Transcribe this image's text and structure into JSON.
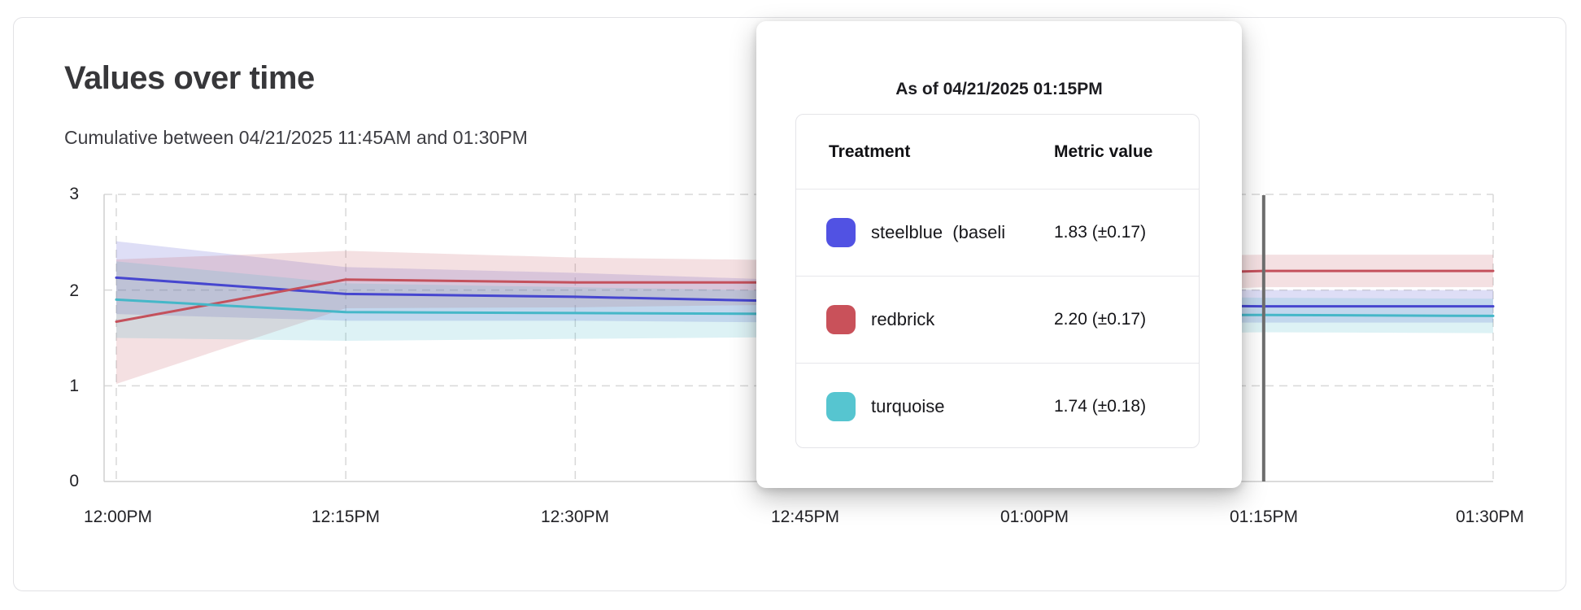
{
  "card": {
    "title": "Values over time",
    "subtitle": "Cumulative between 04/21/2025 11:45AM and 01:30PM"
  },
  "tooltip": {
    "title": "As of 04/21/2025 01:15PM",
    "columns": [
      "Treatment",
      "Metric value"
    ],
    "rows": [
      {
        "swatch_color": "#5152e3",
        "label": "steelblue  (baseli",
        "value": "1.83 (±0.17)"
      },
      {
        "swatch_color": "#c9515a",
        "label": "redbrick",
        "value": "2.20 (±0.17)"
      },
      {
        "swatch_color": "#56c5d0",
        "label": "turquoise",
        "value": "1.74 (±0.18)"
      }
    ]
  },
  "chart_data": {
    "type": "line",
    "title": "Values over time",
    "x_labels": [
      "12:00PM",
      "12:15PM",
      "12:30PM",
      "12:45PM",
      "01:00PM",
      "01:15PM",
      "01:30PM"
    ],
    "y_ticks": [
      "3",
      "2",
      "1",
      "0"
    ],
    "ylim": [
      0,
      3
    ],
    "grid": true,
    "legend_position": "tooltip",
    "cursor_index": 5,
    "cursor_time": "01:15PM",
    "cursor_color": "#6e6e6e",
    "grid_color": "#d8d8d8",
    "axis_color": "#cfcfcf",
    "band_opacity": 0.18,
    "series": [
      {
        "name": "steelblue",
        "color": "#4646cf",
        "values": [
          2.13,
          1.96,
          1.93,
          1.88,
          1.85,
          1.83,
          1.83
        ],
        "err": [
          0.38,
          0.28,
          0.25,
          0.22,
          0.19,
          0.17,
          0.17
        ]
      },
      {
        "name": "redbrick",
        "color": "#c4515c",
        "values": [
          1.67,
          2.11,
          2.08,
          2.08,
          2.14,
          2.2,
          2.2
        ],
        "err": [
          0.65,
          0.3,
          0.26,
          0.23,
          0.2,
          0.17,
          0.17
        ]
      },
      {
        "name": "turquoise",
        "color": "#45b7c8",
        "values": [
          1.9,
          1.77,
          1.76,
          1.75,
          1.74,
          1.74,
          1.73
        ],
        "err": [
          0.4,
          0.3,
          0.27,
          0.24,
          0.21,
          0.18,
          0.18
        ]
      }
    ]
  }
}
